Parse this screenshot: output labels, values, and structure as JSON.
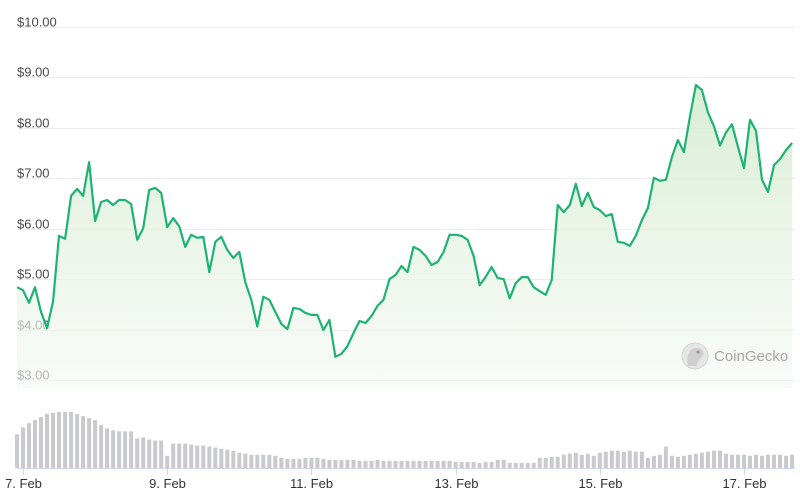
{
  "chart_data": {
    "type": "line",
    "title": "",
    "xlabel": "",
    "ylabel": "",
    "ylim": [
      3,
      10
    ],
    "grid": true,
    "y_ticks": [
      "$3.00",
      "$4.00",
      "$5.00",
      "$6.00",
      "$7.00",
      "$8.00",
      "$9.00",
      "$10.00"
    ],
    "y_tick_values": [
      3,
      4,
      5,
      6,
      7,
      8,
      9,
      10
    ],
    "x_ticks": [
      "7. Feb",
      "9. Feb",
      "11. Feb",
      "13. Feb",
      "15. Feb",
      "17. Feb"
    ],
    "x_tick_dates": [
      "7 Feb 00:00",
      "9 Feb 00:00",
      "11 Feb 00:00",
      "13 Feb 00:00",
      "15 Feb 00:00",
      "17 Feb 00:00"
    ],
    "colors": {
      "line": "#1db373",
      "fill": "#dff0dc",
      "volume": "#c8cacd",
      "axis": "#ccd6eb"
    },
    "watermark": "CoinGecko",
    "x": [
      "6 Feb 22:00",
      "7 Feb 00:00",
      "7 Feb 02:00",
      "7 Feb 04:00",
      "7 Feb 06:00",
      "7 Feb 08:00",
      "7 Feb 10:00",
      "7 Feb 12:00",
      "7 Feb 14:00",
      "7 Feb 16:00",
      "7 Feb 18:00",
      "7 Feb 20:00",
      "7 Feb 22:00",
      "8 Feb 00:00",
      "8 Feb 02:00",
      "8 Feb 04:00",
      "8 Feb 06:00",
      "8 Feb 08:00",
      "8 Feb 10:00",
      "8 Feb 12:00",
      "8 Feb 14:00",
      "8 Feb 16:00",
      "8 Feb 18:00",
      "8 Feb 20:00",
      "8 Feb 22:00",
      "9 Feb 00:00",
      "9 Feb 02:00",
      "9 Feb 04:00",
      "9 Feb 06:00",
      "9 Feb 08:00",
      "9 Feb 10:00",
      "9 Feb 12:00",
      "9 Feb 14:00",
      "9 Feb 16:00",
      "9 Feb 18:00",
      "9 Feb 20:00",
      "9 Feb 22:00",
      "10 Feb 00:00",
      "10 Feb 02:00",
      "10 Feb 04:00",
      "10 Feb 06:00",
      "10 Feb 08:00",
      "10 Feb 10:00",
      "10 Feb 12:00",
      "10 Feb 14:00",
      "10 Feb 16:00",
      "10 Feb 18:00",
      "10 Feb 20:00",
      "10 Feb 22:00",
      "11 Feb 00:00",
      "11 Feb 02:00",
      "11 Feb 04:00",
      "11 Feb 06:00",
      "11 Feb 08:00",
      "11 Feb 10:00",
      "11 Feb 12:00",
      "11 Feb 14:00",
      "11 Feb 16:00",
      "11 Feb 18:00",
      "11 Feb 20:00",
      "11 Feb 22:00",
      "12 Feb 00:00",
      "12 Feb 02:00",
      "12 Feb 04:00",
      "12 Feb 06:00",
      "12 Feb 08:00",
      "12 Feb 10:00",
      "12 Feb 12:00",
      "12 Feb 14:00",
      "12 Feb 16:00",
      "12 Feb 18:00",
      "12 Feb 20:00",
      "12 Feb 22:00",
      "13 Feb 00:00",
      "13 Feb 02:00",
      "13 Feb 04:00",
      "13 Feb 06:00",
      "13 Feb 08:00",
      "13 Feb 10:00",
      "13 Feb 12:00",
      "13 Feb 14:00",
      "13 Feb 16:00",
      "13 Feb 18:00",
      "13 Feb 20:00",
      "13 Feb 22:00",
      "14 Feb 00:00",
      "14 Feb 02:00",
      "14 Feb 04:00",
      "14 Feb 06:00",
      "14 Feb 08:00",
      "14 Feb 10:00",
      "14 Feb 12:00",
      "14 Feb 14:00",
      "14 Feb 16:00",
      "14 Feb 18:00",
      "14 Feb 20:00",
      "14 Feb 22:00",
      "15 Feb 00:00",
      "15 Feb 02:00",
      "15 Feb 04:00",
      "15 Feb 06:00",
      "15 Feb 08:00",
      "15 Feb 10:00",
      "15 Feb 12:00",
      "15 Feb 14:00",
      "15 Feb 16:00",
      "15 Feb 18:00",
      "15 Feb 20:00",
      "15 Feb 22:00",
      "16 Feb 00:00",
      "16 Feb 02:00",
      "16 Feb 04:00",
      "16 Feb 06:00",
      "16 Feb 08:00",
      "16 Feb 10:00",
      "16 Feb 12:00",
      "16 Feb 14:00",
      "16 Feb 16:00",
      "16 Feb 18:00",
      "16 Feb 20:00",
      "16 Feb 22:00",
      "17 Feb 00:00",
      "17 Feb 02:00",
      "17 Feb 04:00",
      "17 Feb 06:00",
      "17 Feb 08:00",
      "17 Feb 10:00",
      "17 Feb 12:00",
      "17 Feb 14:00",
      "17 Feb 16:00"
    ],
    "series": [
      {
        "values": [
          4.84,
          4.78,
          4.53,
          4.84,
          4.35,
          4.03,
          4.55,
          5.86,
          5.8,
          6.65,
          6.79,
          6.65,
          7.32,
          6.15,
          6.53,
          6.57,
          6.47,
          6.57,
          6.57,
          6.49,
          5.78,
          6.01,
          6.77,
          6.81,
          6.71,
          6.03,
          6.21,
          6.05,
          5.64,
          5.88,
          5.82,
          5.84,
          5.14,
          5.74,
          5.84,
          5.58,
          5.42,
          5.54,
          4.94,
          4.59,
          4.06,
          4.65,
          4.59,
          4.35,
          4.11,
          4.01,
          4.43,
          4.41,
          4.33,
          4.29,
          4.29,
          3.99,
          4.19,
          3.46,
          3.52,
          3.67,
          3.93,
          4.17,
          4.13,
          4.27,
          4.47,
          4.59,
          5.0,
          5.08,
          5.26,
          5.14,
          5.64,
          5.58,
          5.46,
          5.28,
          5.34,
          5.54,
          5.88,
          5.88,
          5.86,
          5.78,
          5.46,
          4.88,
          5.04,
          5.24,
          5.02,
          5.0,
          4.62,
          4.92,
          5.04,
          5.04,
          4.84,
          4.76,
          4.69,
          4.98,
          6.47,
          6.33,
          6.47,
          6.89,
          6.45,
          6.71,
          6.43,
          6.37,
          6.25,
          6.29,
          5.74,
          5.72,
          5.66,
          5.86,
          6.17,
          6.41,
          7.01,
          6.95,
          6.97,
          7.42,
          7.76,
          7.52,
          8.22,
          8.85,
          8.75,
          8.31,
          8.03,
          7.65,
          7.91,
          8.07,
          7.62,
          7.2,
          8.16,
          7.94,
          6.97,
          6.73,
          7.26,
          7.38,
          7.56,
          7.7
        ]
      }
    ],
    "volume_relative": [
      33,
      40,
      44,
      47,
      50,
      53,
      54,
      55,
      55,
      55,
      53,
      51,
      49,
      47,
      42,
      39,
      37,
      36,
      36,
      36,
      29,
      30,
      28,
      27,
      27,
      12,
      24,
      24,
      24,
      23,
      22,
      22,
      21,
      20,
      19,
      18,
      17,
      15,
      14,
      13,
      13,
      13,
      13,
      12,
      10,
      9,
      9,
      9,
      10,
      10,
      10,
      9,
      8,
      8,
      8,
      8,
      8,
      7,
      7,
      7,
      8,
      7,
      7,
      7,
      7,
      7,
      7,
      7,
      7,
      7,
      7,
      7,
      7,
      6,
      6,
      6,
      6,
      5,
      6,
      6,
      8,
      8,
      5,
      5,
      5,
      5,
      5,
      10,
      10,
      11,
      11,
      13,
      14,
      15,
      13,
      14,
      12,
      15,
      16,
      17,
      17,
      16,
      17,
      16,
      16,
      10,
      12,
      13,
      21,
      12,
      11,
      12,
      13,
      14,
      15,
      16,
      17,
      17,
      14,
      13,
      13,
      13,
      12,
      13,
      12,
      13,
      13,
      13,
      12,
      13
    ]
  }
}
